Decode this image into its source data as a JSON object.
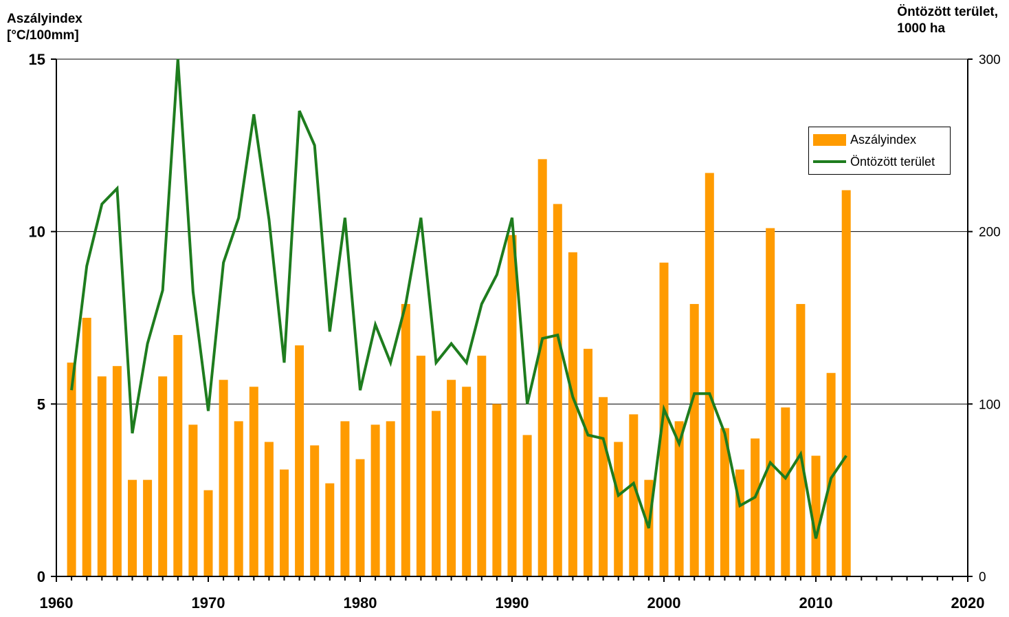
{
  "chart_data": {
    "type": "bar",
    "y_left_title": [
      "Aszályindex",
      "[°C/100mm]"
    ],
    "y_right_title": [
      "Öntözött terület,",
      "1000 ha"
    ],
    "x_ticks": [
      1960,
      1970,
      1980,
      1990,
      2000,
      2010,
      2020
    ],
    "xlim": [
      1960,
      2020
    ],
    "y_left_ticks": [
      0,
      5,
      10,
      15
    ],
    "y_left_lim": [
      0,
      15
    ],
    "y_right_ticks": [
      0,
      100,
      200,
      300
    ],
    "y_right_lim": [
      0,
      300
    ],
    "grid": "horizontal",
    "legend_position": "right",
    "series": [
      {
        "name": "Aszályindex",
        "kind": "bar",
        "axis": "left",
        "color": "#ff9b00",
        "x": [
          1961,
          1962,
          1963,
          1964,
          1965,
          1966,
          1967,
          1968,
          1969,
          1970,
          1971,
          1972,
          1973,
          1974,
          1975,
          1976,
          1977,
          1978,
          1979,
          1980,
          1981,
          1982,
          1983,
          1984,
          1985,
          1986,
          1987,
          1988,
          1989,
          1990,
          1991,
          1992,
          1993,
          1994,
          1995,
          1996,
          1997,
          1998,
          1999,
          2000,
          2001,
          2002,
          2003,
          2004,
          2005,
          2006,
          2007,
          2008,
          2009,
          2010,
          2011,
          2012
        ],
        "values": [
          6.2,
          7.5,
          5.8,
          6.1,
          2.8,
          2.8,
          5.8,
          7.0,
          4.4,
          2.5,
          5.7,
          4.5,
          5.5,
          3.9,
          3.1,
          6.7,
          3.8,
          2.7,
          4.5,
          3.4,
          4.4,
          4.5,
          7.9,
          6.4,
          4.8,
          5.7,
          5.5,
          6.4,
          5.0,
          9.9,
          4.1,
          12.1,
          10.8,
          9.4,
          6.6,
          5.2,
          3.9,
          4.7,
          2.8,
          9.1,
          4.5,
          7.9,
          11.7,
          4.3,
          3.1,
          4.0,
          10.1,
          4.9,
          7.9,
          3.5,
          5.9,
          11.2
        ]
      },
      {
        "name": "Öntözött terület",
        "kind": "line",
        "axis": "right",
        "color": "#1e7c1e",
        "x": [
          1961,
          1962,
          1963,
          1964,
          1965,
          1966,
          1967,
          1968,
          1969,
          1970,
          1971,
          1972,
          1973,
          1974,
          1975,
          1976,
          1977,
          1978,
          1979,
          1980,
          1981,
          1982,
          1983,
          1984,
          1985,
          1986,
          1987,
          1988,
          1989,
          1990,
          1991,
          1992,
          1993,
          1994,
          1995,
          1996,
          1997,
          1998,
          1999,
          2000,
          2001,
          2002,
          2003,
          2004,
          2005,
          2006,
          2007,
          2008,
          2009,
          2010,
          2011,
          2012
        ],
        "values": [
          108,
          180,
          216,
          225,
          83,
          135,
          166,
          300,
          165,
          96,
          182,
          208,
          268,
          207,
          124,
          270,
          250,
          142,
          208,
          108,
          146,
          124,
          158,
          208,
          124,
          135,
          124,
          158,
          175,
          208,
          100,
          138,
          140,
          104,
          82,
          80,
          47,
          54,
          28,
          97,
          77,
          106,
          106,
          83,
          41,
          46,
          66,
          57,
          71,
          22,
          57,
          70
        ]
      }
    ]
  },
  "legend": {
    "bar_label": "Aszályindex",
    "line_label": "Öntözött terület"
  }
}
